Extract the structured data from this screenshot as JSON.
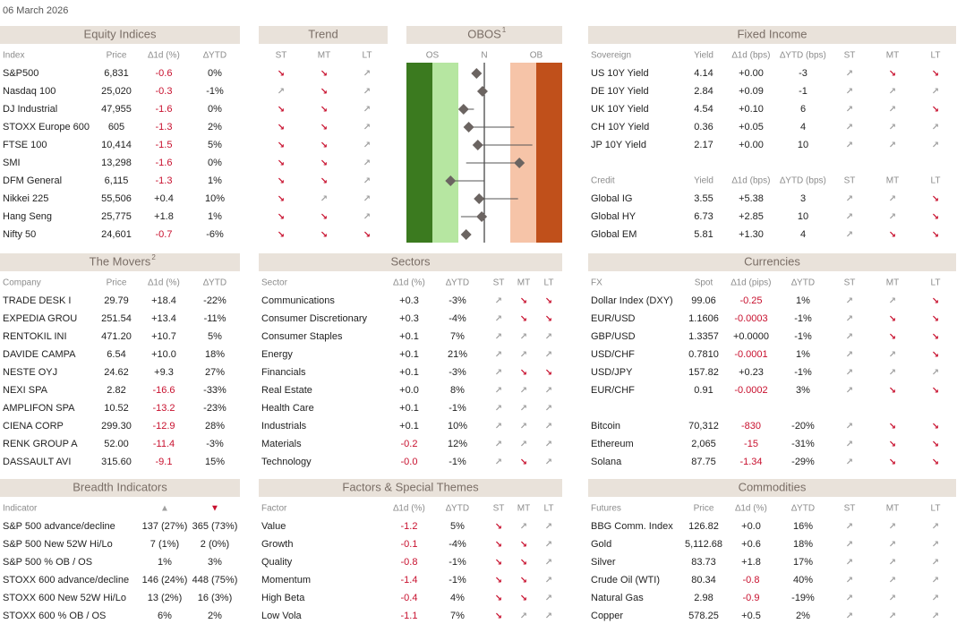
{
  "date": "06 March 2026",
  "equity": {
    "title": "Equity Indices",
    "tables": [
      {
        "columns": [
          "Index",
          "Price",
          "∆1d (%)",
          "∆YTD"
        ],
        "rows": [
          [
            "S&P500",
            "6,831",
            "-0.6",
            "0%"
          ],
          [
            "Nasdaq 100",
            "25,020",
            "-0.3",
            "-1%"
          ],
          [
            "DJ Industrial",
            "47,955",
            "-1.6",
            "0%"
          ],
          [
            "STOXX Europe 600",
            "605",
            "-1.3",
            "2%"
          ],
          [
            "FTSE 100",
            "10,414",
            "-1.5",
            "5%"
          ],
          [
            "SMI",
            "13,298",
            "-1.6",
            "0%"
          ],
          [
            "DFM General",
            "6,115",
            "-1.3",
            "1%"
          ],
          [
            "Nikkei 225",
            "55,506",
            "+0.4",
            "10%"
          ],
          [
            "Hang Seng",
            "25,775",
            "+1.8",
            "1%"
          ],
          [
            "Nifty 50",
            "24,601",
            "-0.7",
            "-6%"
          ]
        ]
      }
    ]
  },
  "trend": {
    "title": "Trend",
    "tables": [
      {
        "columns": [
          "ST",
          "MT",
          "LT"
        ],
        "rows": [
          [
            "↘",
            "↘",
            "↗"
          ],
          [
            "↗",
            "↘",
            "↗"
          ],
          [
            "↘",
            "↘",
            "↗"
          ],
          [
            "↘",
            "↘",
            "↗"
          ],
          [
            "↘",
            "↘",
            "↗"
          ],
          [
            "↘",
            "↘",
            "↗"
          ],
          [
            "↘",
            "↘",
            "↗"
          ],
          [
            "↘",
            "↗",
            "↗"
          ],
          [
            "↘",
            "↘",
            "↗"
          ],
          [
            "↘",
            "↘",
            "↘"
          ]
        ]
      }
    ]
  },
  "obos": {
    "title": "OBOS",
    "superscript": "1",
    "labels": [
      "OS",
      "N",
      "OB"
    ],
    "xlim": [
      -3,
      3
    ],
    "values": [
      -0.3,
      -0.07,
      -0.8,
      -0.6,
      -0.25,
      1.35,
      -1.3,
      -0.2,
      -0.1,
      -0.7
    ],
    "from": [
      null,
      null,
      -0.4,
      1.15,
      1.85,
      -0.7,
      0,
      1.3,
      -0.9,
      null
    ]
  },
  "fixed_income": {
    "title": "Fixed Income",
    "tables": [
      {
        "columns": [
          "Sovereign",
          "Yield",
          "∆1d (bps)",
          "∆YTD (bps)",
          "ST",
          "MT",
          "LT"
        ],
        "rows": [
          [
            "US 10Y Yield",
            "4.14",
            "+0.00",
            "-3",
            "↗",
            "↘",
            "↘"
          ],
          [
            "DE 10Y Yield",
            "2.84",
            "+0.09",
            "-1",
            "↗",
            "↗",
            "↗"
          ],
          [
            "UK 10Y Yield",
            "4.54",
            "+0.10",
            "6",
            "↗",
            "↗",
            "↘"
          ],
          [
            "CH 10Y Yield",
            "0.36",
            "+0.05",
            "4",
            "↗",
            "↗",
            "↗"
          ],
          [
            "JP 10Y Yield",
            "2.17",
            "+0.00",
            "10",
            "↗",
            "↗",
            "↗"
          ]
        ]
      },
      {
        "columns": [
          "Credit",
          "Yield",
          "∆1d (bps)",
          "∆YTD (bps)",
          "ST",
          "MT",
          "LT"
        ],
        "rows": [
          [
            "Global IG",
            "3.55",
            "+5.38",
            "3",
            "↗",
            "↗",
            "↘"
          ],
          [
            "Global HY",
            "6.73",
            "+2.85",
            "10",
            "↗",
            "↗",
            "↘"
          ],
          [
            "Global EM",
            "5.81",
            "+1.30",
            "4",
            "↗",
            "↘",
            "↘"
          ]
        ]
      }
    ]
  },
  "movers": {
    "title": "The Movers",
    "superscript": "2",
    "tables": [
      {
        "columns": [
          "Company",
          "Price",
          "∆1d (%)",
          "∆YTD"
        ],
        "rows": [
          [
            "TRADE DESK I",
            "29.79",
            "+18.4",
            "-22%"
          ],
          [
            "EXPEDIA GROU",
            "251.54",
            "+13.4",
            "-11%"
          ],
          [
            "RENTOKIL INI",
            "471.20",
            "+10.7",
            "5%"
          ],
          [
            "DAVIDE CAMPA",
            "6.54",
            "+10.0",
            "18%"
          ],
          [
            "NESTE OYJ",
            "24.62",
            "+9.3",
            "27%"
          ],
          [
            "NEXI SPA",
            "2.82",
            "-16.6",
            "-33%"
          ],
          [
            "AMPLIFON SPA",
            "10.52",
            "-13.2",
            "-23%"
          ],
          [
            "CIENA CORP",
            "299.30",
            "-12.9",
            "28%"
          ],
          [
            "RENK GROUP A",
            "52.00",
            "-11.4",
            "-3%"
          ],
          [
            "DASSAULT AVI",
            "315.60",
            "-9.1",
            "15%"
          ]
        ]
      }
    ]
  },
  "sectors": {
    "title": "Sectors",
    "tables": [
      {
        "columns": [
          "Sector",
          "∆1d (%)",
          "∆YTD",
          "ST",
          "MT",
          "LT"
        ],
        "rows": [
          [
            "Communications",
            "+0.3",
            "-3%",
            "↗",
            "↘",
            "↘"
          ],
          [
            "Consumer Discretionary",
            "+0.3",
            "-4%",
            "↗",
            "↘",
            "↘"
          ],
          [
            "Consumer Staples",
            "+0.1",
            "7%",
            "↗",
            "↗",
            "↗"
          ],
          [
            "Energy",
            "+0.1",
            "21%",
            "↗",
            "↗",
            "↗"
          ],
          [
            "Financials",
            "+0.1",
            "-3%",
            "↗",
            "↘",
            "↘"
          ],
          [
            "Real Estate",
            "+0.0",
            "8%",
            "↗",
            "↗",
            "↗"
          ],
          [
            "Health Care",
            "+0.1",
            "-1%",
            "↗",
            "↗",
            "↗"
          ],
          [
            "Industrials",
            "+0.1",
            "10%",
            "↗",
            "↗",
            "↗"
          ],
          [
            "Materials",
            "-0.2",
            "12%",
            "↗",
            "↗",
            "↗"
          ],
          [
            "Technology",
            "-0.0",
            "-1%",
            "↗",
            "↘",
            "↗"
          ]
        ]
      }
    ]
  },
  "currencies": {
    "title": "Currencies",
    "tables": [
      {
        "columns": [
          "FX",
          "Spot",
          "∆1d (pips)",
          "∆YTD",
          "ST",
          "MT",
          "LT"
        ],
        "rows": [
          [
            "Dollar Index (DXY)",
            "99.06",
            "-0.25",
            "1%",
            "↗",
            "↗",
            "↘"
          ],
          [
            "EUR/USD",
            "1.1606",
            "-0.0003",
            "-1%",
            "↗",
            "↘",
            "↘"
          ],
          [
            "GBP/USD",
            "1.3357",
            "+0.0000",
            "-1%",
            "↗",
            "↘",
            "↘"
          ],
          [
            "USD/CHF",
            "0.7810",
            "-0.0001",
            "1%",
            "↗",
            "↗",
            "↘"
          ],
          [
            "USD/JPY",
            "157.82",
            "+0.23",
            "-1%",
            "↗",
            "↗",
            "↗"
          ],
          [
            "EUR/CHF",
            "0.91",
            "-0.0002",
            "3%",
            "↗",
            "↘",
            "↘"
          ]
        ]
      },
      {
        "rows": [
          [
            "Bitcoin",
            "70,312",
            "-830",
            "-20%",
            "↗",
            "↘",
            "↘"
          ],
          [
            "Ethereum",
            "2,065",
            "-15",
            "-31%",
            "↗",
            "↘",
            "↘"
          ],
          [
            "Solana",
            "87.75",
            "-1.34",
            "-29%",
            "↗",
            "↘",
            "↘"
          ]
        ]
      }
    ]
  },
  "breadth": {
    "title": "Breadth Indicators",
    "tables": [
      {
        "columns": [
          "Indicator",
          "▲",
          "▼"
        ],
        "rows": [
          [
            "S&P 500 advance/decline",
            "137 (27%)",
            "365 (73%)"
          ],
          [
            "S&P 500 New 52W Hi/Lo",
            "7 (1%)",
            "2 (0%)"
          ],
          [
            "S&P 500 % OB / OS",
            "1%",
            "3%"
          ],
          [
            "STOXX 600 advance/decline",
            "146 (24%)",
            "448 (75%)"
          ],
          [
            "STOXX 600 New 52W Hi/Lo",
            "13 (2%)",
            "16 (3%)"
          ],
          [
            "STOXX 600 % OB / OS",
            "6%",
            "2%"
          ]
        ]
      }
    ]
  },
  "factors": {
    "title": "Factors & Special Themes",
    "tables": [
      {
        "columns": [
          "Factor",
          "∆1d (%)",
          "∆YTD",
          "ST",
          "MT",
          "LT"
        ],
        "rows": [
          [
            "Value",
            "-1.2",
            "5%",
            "↘",
            "↗",
            "↗"
          ],
          [
            "Growth",
            "-0.1",
            "-4%",
            "↘",
            "↘",
            "↗"
          ],
          [
            "Quality",
            "-0.8",
            "-1%",
            "↘",
            "↘",
            "↗"
          ],
          [
            "Momentum",
            "-1.4",
            "-1%",
            "↘",
            "↘",
            "↗"
          ],
          [
            "High Beta",
            "-0.4",
            "4%",
            "↘",
            "↘",
            "↗"
          ],
          [
            "Low Vola",
            "-1.1",
            "7%",
            "↘",
            "↗",
            "↗"
          ]
        ]
      }
    ]
  },
  "commodities": {
    "title": "Commodities",
    "tables": [
      {
        "columns": [
          "Futures",
          "Price",
          "∆1d (%)",
          "∆YTD",
          "ST",
          "MT",
          "LT"
        ],
        "rows": [
          [
            "BBG Comm. Index",
            "126.82",
            "+0.0",
            "16%",
            "↗",
            "↗",
            "↗"
          ],
          [
            "Gold",
            "5,112.68",
            "+0.6",
            "18%",
            "↗",
            "↗",
            "↗"
          ],
          [
            "Silver",
            "83.73",
            "+1.8",
            "17%",
            "↗",
            "↗",
            "↗"
          ],
          [
            "Crude Oil (WTI)",
            "80.34",
            "-0.8",
            "40%",
            "↗",
            "↗",
            "↗"
          ],
          [
            "Natural Gas",
            "2.98",
            "-0.9",
            "-19%",
            "↗",
            "↗",
            "↗"
          ],
          [
            "Copper",
            "578.25",
            "+0.5",
            "2%",
            "↗",
            "↗",
            "↗"
          ]
        ]
      }
    ]
  }
}
